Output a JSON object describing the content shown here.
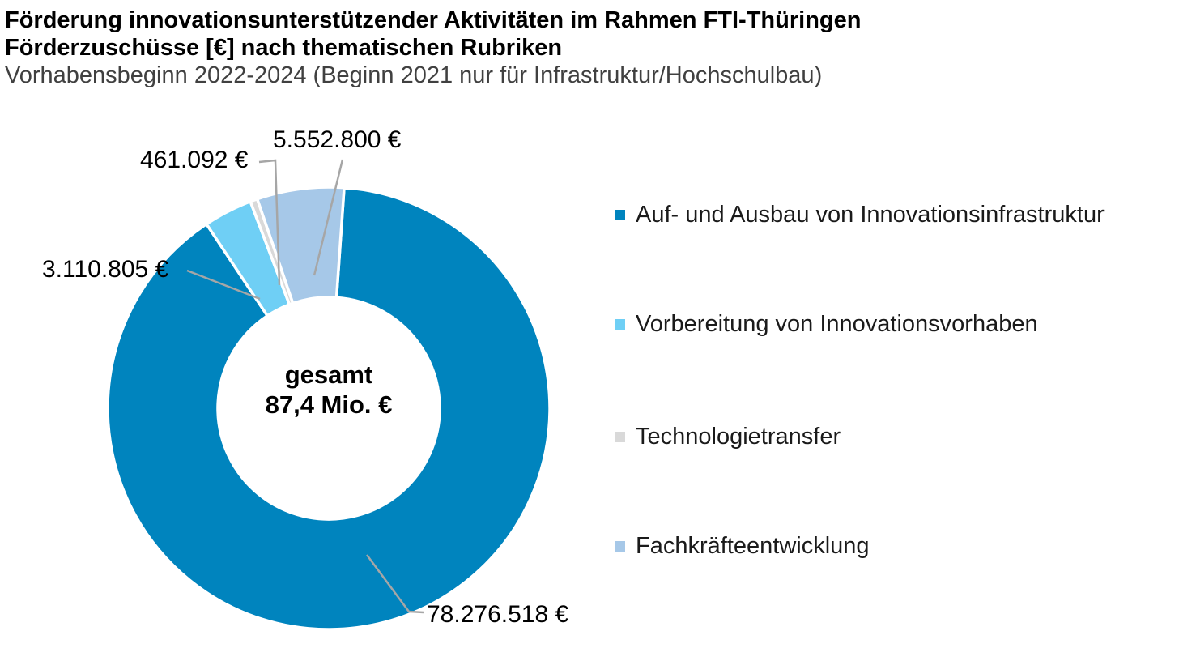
{
  "title": {
    "line1": "Förderung innovationsunterstützender Aktivitäten im Rahmen FTI-Thüringen",
    "line2": "Förderzuschüsse [€] nach thematischen Rubriken",
    "line3": "Vorhabensbeginn 2022-2024 (Beginn 2021 nur für Infrastruktur/Hochschulbau)"
  },
  "chart_data": {
    "type": "pie",
    "subtype": "donut",
    "title": "Förderzuschüsse [€] nach thematischen Rubriken",
    "legend_position": "right",
    "hole_ratio": 0.5,
    "center_label": {
      "line1": "gesamt",
      "line2": "87,4 Mio. €"
    },
    "slices": [
      {
        "label": "Auf- und Ausbau von Innovationsinfrastruktur",
        "value": 78276518,
        "value_label": "78.276.518 €",
        "color": "#0084BE"
      },
      {
        "label": "Vorbereitung von Innovationsvorhaben",
        "value": 3110805,
        "value_label": "3.110.805 €",
        "color": "#6FCFF5"
      },
      {
        "label": "Technologietransfer",
        "value": 461092,
        "value_label": "461.092 €",
        "color": "#D9D9D9"
      },
      {
        "label": "Fachkräfteentwicklung",
        "value": 5552800,
        "value_label": "5.552.800 €",
        "color": "#A6C8E8"
      }
    ],
    "leader_line_color": "#A6A6A6",
    "slice_border_color": "#FFFFFF"
  }
}
